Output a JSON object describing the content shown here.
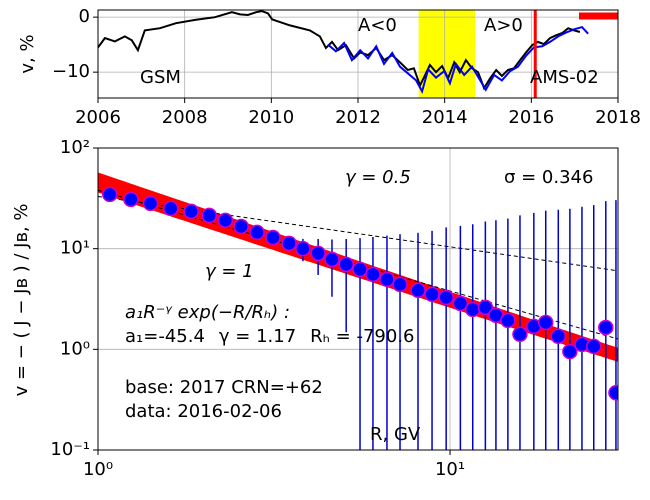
{
  "chart_data": [
    {
      "type": "line",
      "ylabel": "v, %",
      "xlim": [
        2006,
        2018
      ],
      "xticks": [
        2006,
        2008,
        2010,
        2012,
        2014,
        2016,
        2018
      ],
      "ylim": [
        -14.7,
        1.3
      ],
      "yticks": [
        {
          "value": -10,
          "label": "−10"
        },
        0
      ],
      "grid": true,
      "series": [
        {
          "name": "GSM",
          "color": "#000000",
          "x": [
            2006.0,
            2006.16,
            2006.39,
            2006.62,
            2006.78,
            2006.92,
            2007.08,
            2007.43,
            2007.8,
            2008.24,
            2008.7,
            2009.09,
            2009.28,
            2009.46,
            2009.65,
            2009.78,
            2009.92,
            2010.02,
            2010.43,
            2010.89,
            2011.12,
            2011.26,
            2011.4,
            2011.54,
            2011.72,
            2011.91,
            2012.05,
            2012.23,
            2012.42,
            2012.6,
            2012.79,
            2012.97,
            2013.15,
            2013.29,
            2013.43,
            2013.55,
            2013.66,
            2013.8,
            2013.94,
            2014.08,
            2014.22,
            2014.35,
            2014.49,
            2014.63,
            2014.77,
            2014.91,
            2015.05,
            2015.19,
            2015.32,
            2015.46,
            2015.6,
            2015.74,
            2015.88,
            2016.02,
            2016.15,
            2016.29,
            2016.43,
            2016.57,
            2016.71,
            2016.85,
            2016.99,
            2017.12
          ],
          "values": [
            -5.5,
            -3.8,
            -4.4,
            -3.5,
            -4.2,
            -6.0,
            -2.4,
            -2.0,
            -1.1,
            -0.5,
            0.0,
            0.9,
            0.5,
            0.4,
            0.9,
            1.1,
            0.7,
            -0.4,
            -1.5,
            -2.4,
            -3.5,
            -5.6,
            -4.5,
            -6.0,
            -5.1,
            -7.5,
            -6.4,
            -6.9,
            -5.6,
            -7.8,
            -6.9,
            -8.2,
            -9.6,
            -9.3,
            -12.4,
            -10.5,
            -8.7,
            -10.0,
            -8.9,
            -11.1,
            -8.2,
            -10.0,
            -7.8,
            -9.3,
            -10.0,
            -12.9,
            -11.1,
            -9.6,
            -10.7,
            -9.6,
            -9.3,
            -7.8,
            -6.4,
            -5.1,
            -4.5,
            -4.9,
            -3.8,
            -3.3,
            -2.9,
            -2.0,
            -2.4,
            -2.7
          ]
        },
        {
          "name": "AMS-02",
          "color": "#0000ff",
          "x": [
            2011.31,
            2011.49,
            2011.68,
            2011.86,
            2012.05,
            2012.23,
            2012.42,
            2012.6,
            2012.79,
            2012.97,
            2013.15,
            2013.34,
            2013.48,
            2013.62,
            2013.8,
            2013.99,
            2014.12,
            2014.26,
            2014.45,
            2014.63,
            2014.82,
            2014.95,
            2015.14,
            2015.32,
            2015.51,
            2015.69,
            2015.88,
            2016.06,
            2016.25,
            2016.43,
            2016.62,
            2016.8,
            2016.99,
            2017.17,
            2017.31
          ],
          "values": [
            -5.0,
            -6.2,
            -4.7,
            -7.8,
            -6.0,
            -7.5,
            -5.3,
            -8.5,
            -6.5,
            -9.0,
            -10.2,
            -11.5,
            -13.5,
            -9.5,
            -11.0,
            -9.8,
            -12.0,
            -8.5,
            -10.5,
            -9.0,
            -11.5,
            -13.2,
            -10.5,
            -11.5,
            -9.8,
            -9.0,
            -7.0,
            -5.5,
            -5.3,
            -4.5,
            -3.5,
            -2.8,
            -2.2,
            -1.8,
            -3.0
          ]
        }
      ],
      "shaded_span": {
        "x": [
          2013.4,
          2014.7
        ],
        "color": "#ffff00"
      },
      "vline": {
        "x": 2016.09,
        "color": "#ff0000"
      },
      "hbar": {
        "x": [
          2017.1,
          2018
        ],
        "y": 0.2,
        "color": "#ff0000"
      },
      "annotations": [
        "A<0",
        "A>0"
      ]
    },
    {
      "type": "scatter",
      "xlabel": "R, GV",
      "ylabel": "v = − ( J − Jʙ ) / Jʙ, %",
      "log_x": true,
      "log_y": true,
      "xlim": [
        1,
        30
      ],
      "xticks": [
        {
          "value": 1,
          "label": "10⁰"
        },
        {
          "value": 10,
          "label": "10¹"
        }
      ],
      "ylim": [
        0.1,
        100
      ],
      "yticks": [
        {
          "value": 0.1,
          "label": "10⁻¹"
        },
        {
          "value": 1,
          "label": "10⁰"
        },
        {
          "value": 10,
          "label": "10¹"
        },
        {
          "value": 100,
          "label": "10²"
        }
      ],
      "grid": true,
      "color": "#0000ff",
      "edge_color": "#cc00cc",
      "x": [
        1.08,
        1.24,
        1.41,
        1.61,
        1.84,
        2.07,
        2.3,
        2.55,
        2.83,
        3.14,
        3.49,
        3.82,
        4.22,
        4.62,
        5.07,
        5.55,
        6.04,
        6.62,
        7.21,
        8.11,
        8.89,
        9.75,
        10.7,
        11.6,
        12.6,
        13.5,
        14.6,
        15.8,
        17.3,
        18.7,
        20.3,
        21.9,
        23.7,
        25.6,
        27.7,
        29.6
      ],
      "values": [
        34.6,
        30.9,
        28.2,
        25.1,
        23.5,
        21.4,
        19.1,
        16.6,
        14.5,
        12.9,
        11.3,
        10.0,
        8.98,
        7.83,
        6.98,
        6.23,
        5.56,
        4.96,
        4.42,
        3.86,
        3.52,
        3.28,
        2.86,
        2.49,
        2.61,
        2.18,
        1.94,
        1.41,
        1.69,
        1.85,
        1.35,
        0.95,
        1.12,
        1.07,
        1.65,
        0.37
      ],
      "errors": [
        0.3,
        0.3,
        0.3,
        0.4,
        0.4,
        0.5,
        0.5,
        0.6,
        0.7,
        0.8,
        1.5,
        2.5,
        3.5,
        4.5,
        5.5,
        6.5,
        7.5,
        8.5,
        9.5,
        10.5,
        11.5,
        13,
        14,
        15,
        16,
        17,
        18,
        20,
        21,
        22,
        23,
        24,
        25,
        26,
        28,
        30
      ],
      "fit": {
        "a1": -45.4,
        "gamma": 1.17,
        "RH": -790.6,
        "color": "#ff0000"
      },
      "fit_formula": "a₁R⁻ᵞ exp(−R/Rₕ) :",
      "fit_labels": {
        "a1": "a₁=",
        "gamma": "γ = ",
        "RH": "Rₕ = "
      },
      "reference_lines": [
        {
          "gamma": {
            "value": 0.5,
            "label": "γ = 0.5"
          },
          "amplitude": 33
        },
        {
          "gamma": {
            "value": 1,
            "label": "γ = 1"
          },
          "amplitude": 38
        }
      ],
      "annotations": [
        "σ = 0.346",
        "base: 2017   CRN=+62",
        "data: 2016-02-06"
      ]
    }
  ]
}
